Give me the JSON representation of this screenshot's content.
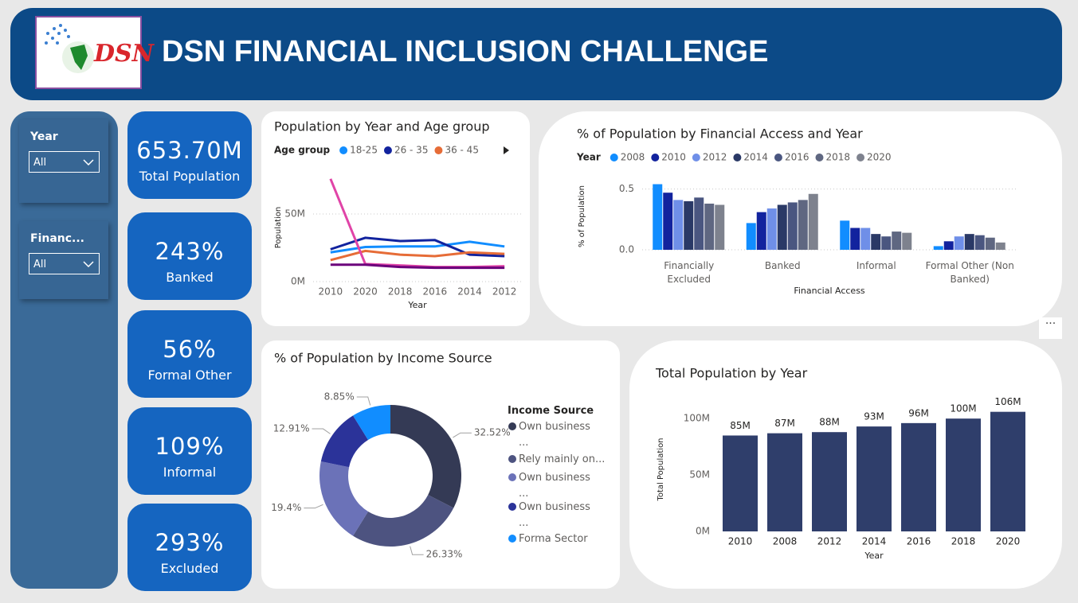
{
  "header": {
    "title": "DSN FINANCIAL INCLUSION CHALLENGE",
    "logo_text": "DSN"
  },
  "slicers": [
    {
      "label": "Year",
      "value": "All"
    },
    {
      "label": "Financ...",
      "value": "All"
    }
  ],
  "cards": [
    {
      "value": "653.70M",
      "label": "Total Population"
    },
    {
      "value": "243%",
      "label": "Banked"
    },
    {
      "value": "56%",
      "label": "Formal Other"
    },
    {
      "value": "109%",
      "label": "Informal"
    },
    {
      "value": "293%",
      "label": "Excluded"
    }
  ],
  "chart_data": [
    {
      "type": "line",
      "title": "Population by Year and Age group",
      "legend_title": "Age group",
      "x_label": "Year",
      "y_label": "Population",
      "categories": [
        "2010",
        "2020",
        "2018",
        "2016",
        "2014",
        "2012"
      ],
      "ylim": [
        0,
        80
      ],
      "yticks": [
        {
          "value": 0,
          "label": "0M"
        },
        {
          "value": 50,
          "label": "50M"
        }
      ],
      "grid": true,
      "series": [
        {
          "name": "18-25",
          "color": "#118DFF",
          "values": [
            21.6,
            25.6,
            26,
            26,
            29.5,
            26
          ]
        },
        {
          "name": "26 - 35",
          "color": "#12239E",
          "values": [
            23.9,
            32.4,
            30,
            30.7,
            19.9,
            18.8
          ]
        },
        {
          "name": "36 - 45",
          "color": "#E66C37",
          "values": [
            15.9,
            22.7,
            19.9,
            18.8,
            21.6,
            20.5
          ]
        },
        {
          "color": "#E044A7",
          "values": [
            76,
            13,
            12,
            10.8,
            10.8,
            11.4
          ]
        },
        {
          "color": "#6B007B",
          "values": [
            12.5,
            12.5,
            10.8,
            10.2,
            10.2,
            10.2
          ]
        }
      ]
    },
    {
      "type": "grouped_bar",
      "title": "% of Population by Financial Access and Year",
      "legend_title": "Year",
      "x_label": "Financial Access",
      "y_label": "% of Population",
      "categories": [
        "Financially Excluded",
        "Banked",
        "Informal",
        "Formal Other (Non Banked)"
      ],
      "ylim": [
        0,
        0.55
      ],
      "yticks": [
        {
          "value": 0,
          "label": "0.0"
        },
        0.5
      ],
      "grid": true,
      "series": [
        {
          "name": "2008",
          "color": "#118DFF",
          "values": [
            0.54,
            0.22,
            0.24,
            0.03
          ]
        },
        {
          "name": "2010",
          "color": "#12239E",
          "values": [
            0.47,
            0.31,
            0.18,
            0.07
          ]
        },
        {
          "name": "2012",
          "color": "#6F8FE8",
          "values": [
            0.41,
            0.34,
            0.18,
            0.11
          ]
        },
        {
          "name": "2014",
          "color": "#2A3966",
          "values": [
            0.4,
            0.37,
            0.13,
            0.13
          ]
        },
        {
          "name": "2016",
          "color": "#4A5680",
          "values": [
            0.43,
            0.39,
            0.11,
            0.12
          ]
        },
        {
          "name": "2018",
          "color": "#5F6781",
          "values": [
            0.38,
            0.41,
            0.15,
            0.1
          ]
        },
        {
          "name": "2020",
          "color": "#7E828E",
          "values": [
            0.37,
            0.46,
            0.14,
            0.06
          ]
        }
      ]
    },
    {
      "type": "donut",
      "title": "% of Population by Income Source",
      "legend_title": "Income Source",
      "categories": [
        "Own business\n...",
        "Rely mainly on...",
        "Own business\n...",
        "Own business\n...",
        "Forma Sector"
      ],
      "values": [
        32.52,
        26.33,
        19.4,
        12.91,
        8.85
      ],
      "value_labels": [
        "32.52%",
        "26.33%",
        "19.4%",
        "12.91%",
        "8.85%"
      ],
      "colors": [
        "#343A55",
        "#4D5380",
        "#6B72B8",
        "#2B3399",
        "#118DFF"
      ]
    },
    {
      "type": "bar",
      "title": "Total Population by Year",
      "x_label": "Year",
      "y_label": "Total Population",
      "categories": [
        "2010",
        "2008",
        "2012",
        "2014",
        "2016",
        "2018",
        "2020"
      ],
      "values": [
        85,
        87,
        88,
        93,
        96,
        100,
        106
      ],
      "value_labels": [
        "85M",
        "87M",
        "88M",
        "93M",
        "96M",
        "100M",
        "106M"
      ],
      "color": "#2F3E6B",
      "ylim": [
        0,
        110
      ],
      "yticks": [
        {
          "value": 0,
          "label": "0M"
        },
        {
          "value": 50,
          "label": "50M"
        },
        {
          "value": 100,
          "label": "100M"
        }
      ],
      "grid": false
    }
  ]
}
